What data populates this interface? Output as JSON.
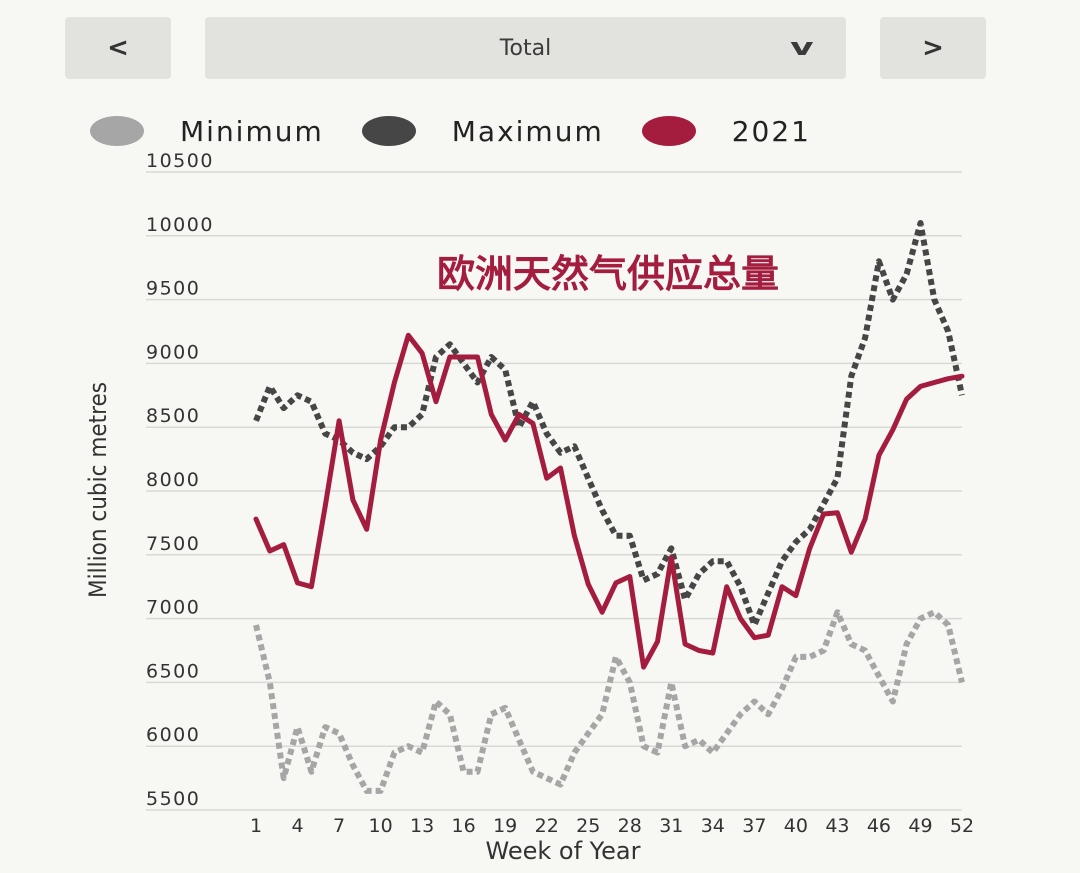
{
  "controls": {
    "prev_label": "<",
    "next_label": ">",
    "select_value": "Total",
    "chevron_glyph": "v"
  },
  "colors": {
    "minimum": "#a6a6a6",
    "maximum": "#464646",
    "y2021": "#a41d3f",
    "grid": "#d8d8d4",
    "background": "#f7f7f4"
  },
  "chart_data": {
    "type": "line",
    "title": "欧洲天然气供应总量",
    "xlabel": "Week of Year",
    "ylabel": "Million cubic metres",
    "xlim": [
      1,
      52
    ],
    "ylim": [
      5500,
      10500
    ],
    "yticks": [
      5500,
      6000,
      6500,
      7000,
      7500,
      8000,
      8500,
      9000,
      9500,
      10000,
      10500
    ],
    "xticks": [
      1,
      4,
      7,
      10,
      13,
      16,
      19,
      22,
      25,
      28,
      31,
      34,
      37,
      40,
      43,
      46,
      49,
      52
    ],
    "legend": "top",
    "series": [
      {
        "name": "Minimum",
        "style": "dotted",
        "x": [
          1,
          2,
          3,
          4,
          5,
          6,
          7,
          8,
          9,
          10,
          11,
          12,
          13,
          14,
          15,
          16,
          17,
          18,
          19,
          20,
          21,
          22,
          23,
          24,
          25,
          26,
          27,
          28,
          29,
          30,
          31,
          32,
          33,
          34,
          35,
          36,
          37,
          38,
          39,
          40,
          41,
          42,
          43,
          44,
          45,
          46,
          47,
          48,
          49,
          50,
          51,
          52
        ],
        "values": [
          6950,
          6500,
          5750,
          6150,
          5800,
          6150,
          6100,
          5850,
          5650,
          5650,
          5950,
          6000,
          5950,
          6350,
          6250,
          5800,
          5800,
          6250,
          6300,
          6050,
          5800,
          5750,
          5700,
          5950,
          6100,
          6250,
          6700,
          6500,
          6000,
          5950,
          6500,
          6000,
          6050,
          5950,
          6100,
          6250,
          6350,
          6250,
          6450,
          6700,
          6700,
          6750,
          7050,
          6800,
          6750,
          6550,
          6350,
          6800,
          7000,
          7050,
          6950,
          6500
        ]
      },
      {
        "name": "Maximum",
        "style": "dotted",
        "x": [
          1,
          2,
          3,
          4,
          5,
          6,
          7,
          8,
          9,
          10,
          11,
          12,
          13,
          14,
          15,
          16,
          17,
          18,
          19,
          20,
          21,
          22,
          23,
          24,
          25,
          26,
          27,
          28,
          29,
          30,
          31,
          32,
          33,
          34,
          35,
          36,
          37,
          38,
          39,
          40,
          41,
          42,
          43,
          44,
          45,
          46,
          47,
          48,
          49,
          50,
          51,
          52
        ],
        "values": [
          8550,
          8820,
          8650,
          8750,
          8700,
          8450,
          8400,
          8300,
          8250,
          8350,
          8500,
          8500,
          8600,
          9050,
          9150,
          9000,
          8850,
          9050,
          8950,
          8500,
          8700,
          8450,
          8300,
          8350,
          8100,
          7850,
          7650,
          7650,
          7300,
          7350,
          7550,
          7150,
          7350,
          7450,
          7450,
          7250,
          6950,
          7200,
          7450,
          7600,
          7700,
          7900,
          8100,
          8900,
          9200,
          9800,
          9500,
          9700,
          10100,
          9500,
          9250,
          8750
        ]
      },
      {
        "name": "2021",
        "style": "solid",
        "x": [
          1,
          2,
          3,
          4,
          5,
          6,
          7,
          8,
          9,
          10,
          11,
          12,
          13,
          14,
          15,
          16,
          17,
          18,
          19,
          20,
          21,
          22,
          23,
          24,
          25,
          26,
          27,
          28,
          29,
          30,
          31,
          32,
          33,
          34,
          35,
          36,
          37,
          38,
          39,
          40,
          41,
          42,
          43,
          44,
          45,
          46,
          47,
          48,
          49,
          50,
          51,
          52
        ],
        "values": [
          7780,
          7530,
          7580,
          7280,
          7250,
          7880,
          8550,
          7930,
          7700,
          8400,
          8850,
          9220,
          9080,
          8700,
          9050,
          9050,
          9050,
          8600,
          8400,
          8600,
          8530,
          8100,
          8180,
          7650,
          7270,
          7050,
          7280,
          7330,
          6620,
          6820,
          7480,
          6800,
          6750,
          6730,
          7250,
          7000,
          6850,
          6870,
          7250,
          7180,
          7550,
          7820,
          7830,
          7520,
          7780,
          8280,
          8480,
          8720,
          8820,
          8850,
          8880,
          8900
        ]
      }
    ]
  }
}
